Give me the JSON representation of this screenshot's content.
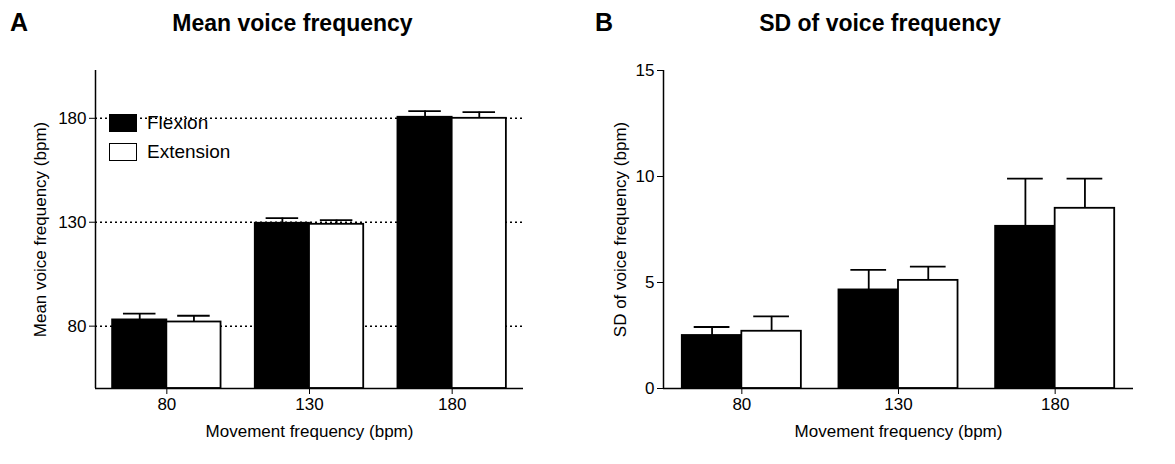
{
  "chart_data": [
    {
      "type": "bar",
      "panel": "A",
      "title": "Mean voice frequency",
      "x_label": "Movement frequency (bpm)",
      "y_label": "Mean voice frequency (bpm)",
      "categories": [
        "80",
        "130",
        "180"
      ],
      "series": [
        {
          "name": "Flexion",
          "color": "#000000",
          "values": [
            83,
            129.5,
            180.5
          ],
          "errors": [
            3,
            2.5,
            3
          ]
        },
        {
          "name": "Extension",
          "color": "#ffffff",
          "values": [
            82,
            129,
            180
          ],
          "errors": [
            3,
            2,
            3
          ]
        }
      ],
      "ylim": [
        50,
        203
      ],
      "yticks": [
        80,
        130,
        180
      ],
      "grid": true,
      "legend": "top-left"
    },
    {
      "type": "bar",
      "panel": "B",
      "title": "SD of voice frequency",
      "x_label": "Movement frequency (bpm)",
      "y_label": "SD of voice frequency (bpm)",
      "categories": [
        "80",
        "130",
        "180"
      ],
      "series": [
        {
          "name": "Flexion",
          "color": "#000000",
          "values": [
            2.5,
            4.65,
            7.65
          ],
          "errors": [
            0.4,
            0.95,
            2.25
          ]
        },
        {
          "name": "Extension",
          "color": "#ffffff",
          "values": [
            2.7,
            5.1,
            8.5
          ],
          "errors": [
            0.7,
            0.65,
            1.4
          ]
        }
      ],
      "ylim": [
        0,
        15
      ],
      "yticks": [
        0,
        5,
        10,
        15
      ],
      "grid": false
    }
  ]
}
